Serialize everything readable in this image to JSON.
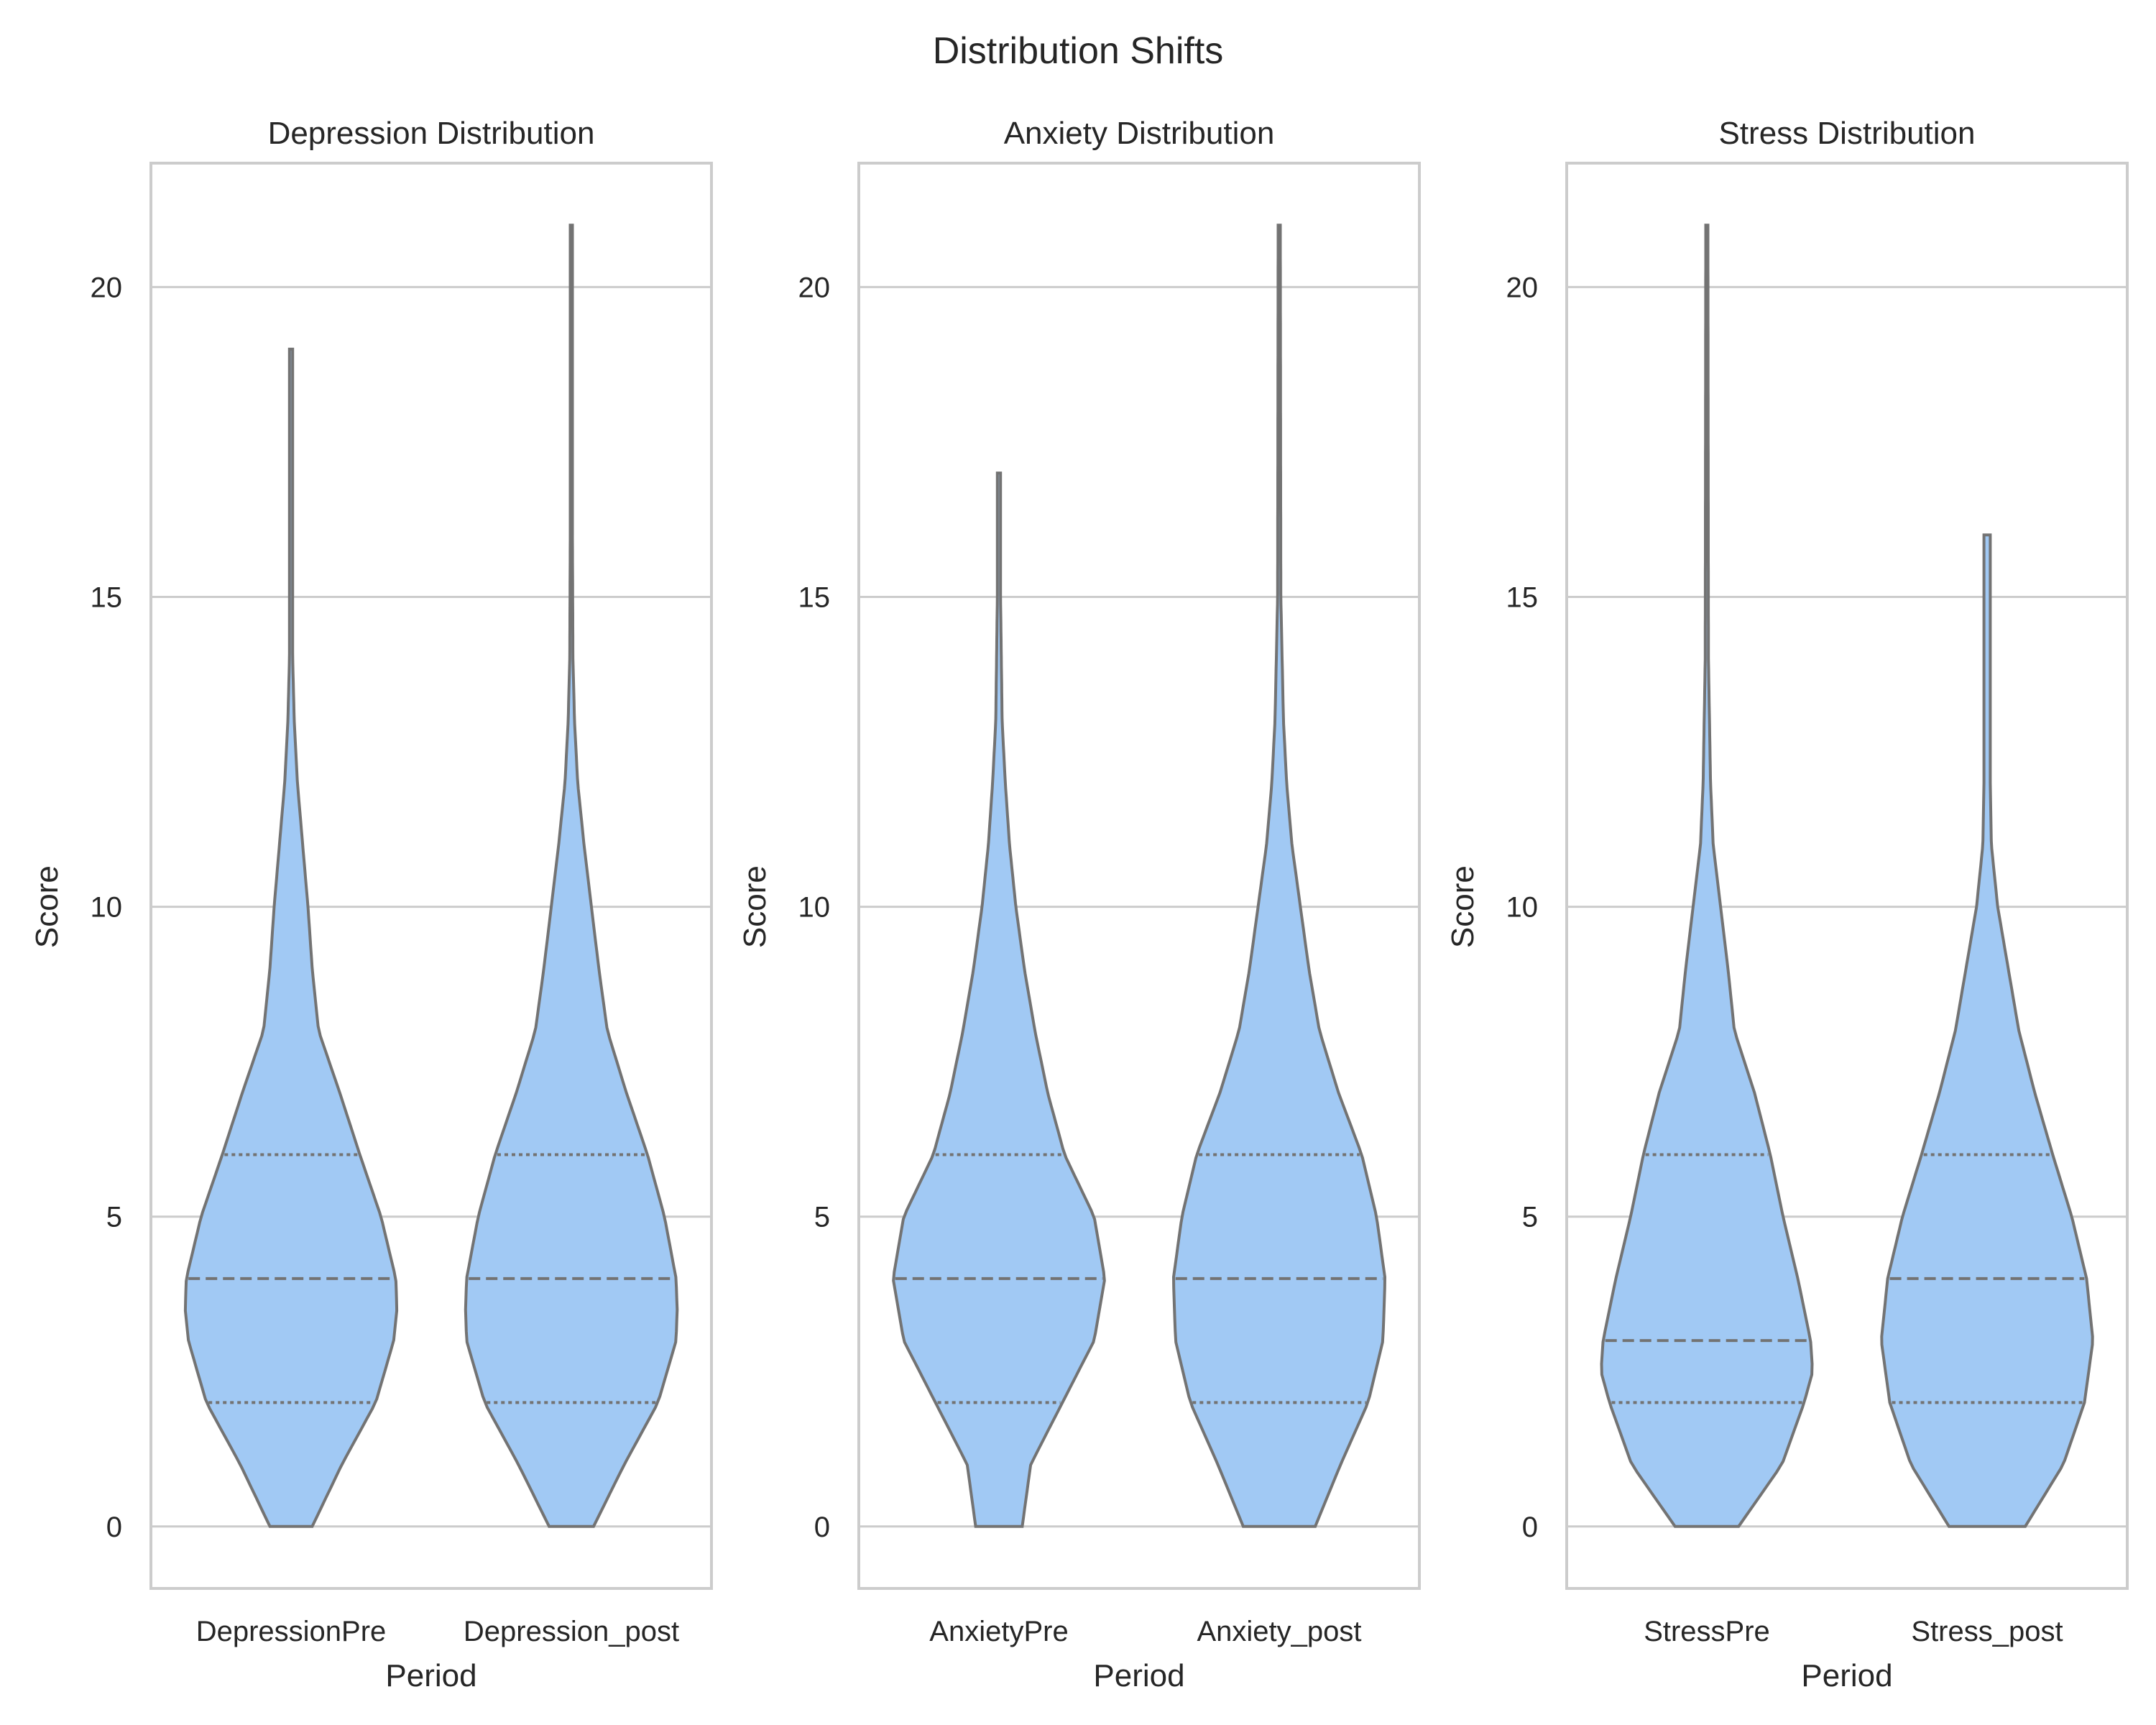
{
  "suptitle": "Distribution Shifts",
  "colors": {
    "violin_fill": "#a1c9f4",
    "violin_edge": "#737373",
    "grid": "#cccccc"
  },
  "chart_data": [
    {
      "type": "violin",
      "title": "Depression Distribution",
      "xlabel": "Period",
      "ylabel": "Score",
      "ylim": [
        -1,
        22
      ],
      "yticks": [
        0,
        5,
        10,
        15,
        20
      ],
      "grid": true,
      "categories": [
        "DepressionPre",
        "Depression_post"
      ],
      "series": [
        {
          "category": "DepressionPre",
          "min": 0,
          "max": 19,
          "q1": 2,
          "median": 4,
          "q3": 6,
          "density": [
            [
              0,
              0.2
            ],
            [
              1,
              0.48
            ],
            [
              2,
              0.8
            ],
            [
              3,
              0.97
            ],
            [
              3.5,
              1.0
            ],
            [
              4,
              0.99
            ],
            [
              5,
              0.85
            ],
            [
              6,
              0.65
            ],
            [
              7,
              0.46
            ],
            [
              8,
              0.26
            ],
            [
              9,
              0.2
            ],
            [
              10,
              0.16
            ],
            [
              11,
              0.11
            ],
            [
              12,
              0.06
            ],
            [
              13,
              0.03
            ],
            [
              14,
              0.015
            ],
            [
              16,
              0.015
            ],
            [
              19,
              0.015
            ]
          ]
        },
        {
          "category": "Depression_post",
          "min": 0,
          "max": 21,
          "q1": 2,
          "median": 4,
          "q3": 6,
          "density": [
            [
              0,
              0.21
            ],
            [
              1,
              0.5
            ],
            [
              2,
              0.82
            ],
            [
              3,
              0.99
            ],
            [
              3.5,
              1.0
            ],
            [
              4,
              0.99
            ],
            [
              5,
              0.88
            ],
            [
              6,
              0.72
            ],
            [
              7,
              0.52
            ],
            [
              8,
              0.34
            ],
            [
              9,
              0.26
            ],
            [
              10,
              0.19
            ],
            [
              11,
              0.12
            ],
            [
              12,
              0.06
            ],
            [
              13,
              0.03
            ],
            [
              14,
              0.015
            ],
            [
              16,
              0.01
            ],
            [
              21,
              0.01
            ]
          ]
        }
      ]
    },
    {
      "type": "violin",
      "title": "Anxiety Distribution",
      "xlabel": "Period",
      "ylabel": "Score",
      "ylim": [
        -1,
        22
      ],
      "yticks": [
        0,
        5,
        10,
        15,
        20
      ],
      "grid": true,
      "categories": [
        "AnxietyPre",
        "Anxiety_post"
      ],
      "series": [
        {
          "category": "AnxietyPre",
          "min": 0,
          "max": 17,
          "q1": 2,
          "median": 4,
          "q3": 6,
          "density": [
            [
              0,
              0.22
            ],
            [
              1,
              0.3
            ],
            [
              2,
              0.6
            ],
            [
              3,
              0.9
            ],
            [
              4,
              1.0
            ],
            [
              5,
              0.9
            ],
            [
              6,
              0.62
            ],
            [
              7,
              0.46
            ],
            [
              8,
              0.34
            ],
            [
              9,
              0.24
            ],
            [
              10,
              0.16
            ],
            [
              11,
              0.1
            ],
            [
              12,
              0.06
            ],
            [
              13,
              0.03
            ],
            [
              15,
              0.015
            ],
            [
              17,
              0.015
            ]
          ]
        },
        {
          "category": "Anxiety_post",
          "min": 0,
          "max": 21,
          "q1": 2,
          "median": 4,
          "q3": 6,
          "density": [
            [
              0,
              0.34
            ],
            [
              1,
              0.58
            ],
            [
              2,
              0.84
            ],
            [
              3,
              0.98
            ],
            [
              4,
              1.0
            ],
            [
              5,
              0.92
            ],
            [
              6,
              0.78
            ],
            [
              7,
              0.56
            ],
            [
              8,
              0.38
            ],
            [
              9,
              0.28
            ],
            [
              10,
              0.2
            ],
            [
              11,
              0.12
            ],
            [
              12,
              0.07
            ],
            [
              13,
              0.04
            ],
            [
              15,
              0.015
            ],
            [
              21,
              0.01
            ]
          ]
        }
      ]
    },
    {
      "type": "violin",
      "title": "Stress Distribution",
      "xlabel": "Period",
      "ylabel": "Score",
      "ylim": [
        -1,
        22
      ],
      "yticks": [
        0,
        5,
        10,
        15,
        20
      ],
      "grid": true,
      "categories": [
        "StressPre",
        "Stress_post"
      ],
      "series": [
        {
          "category": "StressPre",
          "min": 0,
          "max": 21,
          "q1": 2,
          "median": 3,
          "q3": 6,
          "density": [
            [
              0,
              0.3
            ],
            [
              1,
              0.71
            ],
            [
              2,
              0.92
            ],
            [
              2.5,
              1.0
            ],
            [
              3,
              0.98
            ],
            [
              4,
              0.86
            ],
            [
              5,
              0.72
            ],
            [
              6,
              0.6
            ],
            [
              7,
              0.45
            ],
            [
              8,
              0.26
            ],
            [
              9,
              0.2
            ],
            [
              10,
              0.13
            ],
            [
              11,
              0.06
            ],
            [
              12,
              0.035
            ],
            [
              14,
              0.015
            ],
            [
              21,
              0.01
            ]
          ]
        },
        {
          "category": "Stress_post",
          "min": 0,
          "max": 16,
          "q1": 2,
          "median": 4,
          "q3": 6,
          "density": [
            [
              0,
              0.36
            ],
            [
              1,
              0.72
            ],
            [
              2,
              0.92
            ],
            [
              3,
              1.0
            ],
            [
              4,
              0.94
            ],
            [
              5,
              0.8
            ],
            [
              6,
              0.62
            ],
            [
              7,
              0.45
            ],
            [
              8,
              0.3
            ],
            [
              9,
              0.2
            ],
            [
              10,
              0.1
            ],
            [
              11,
              0.04
            ],
            [
              12,
              0.03
            ],
            [
              14,
              0.03
            ],
            [
              16,
              0.03
            ]
          ]
        }
      ]
    }
  ]
}
